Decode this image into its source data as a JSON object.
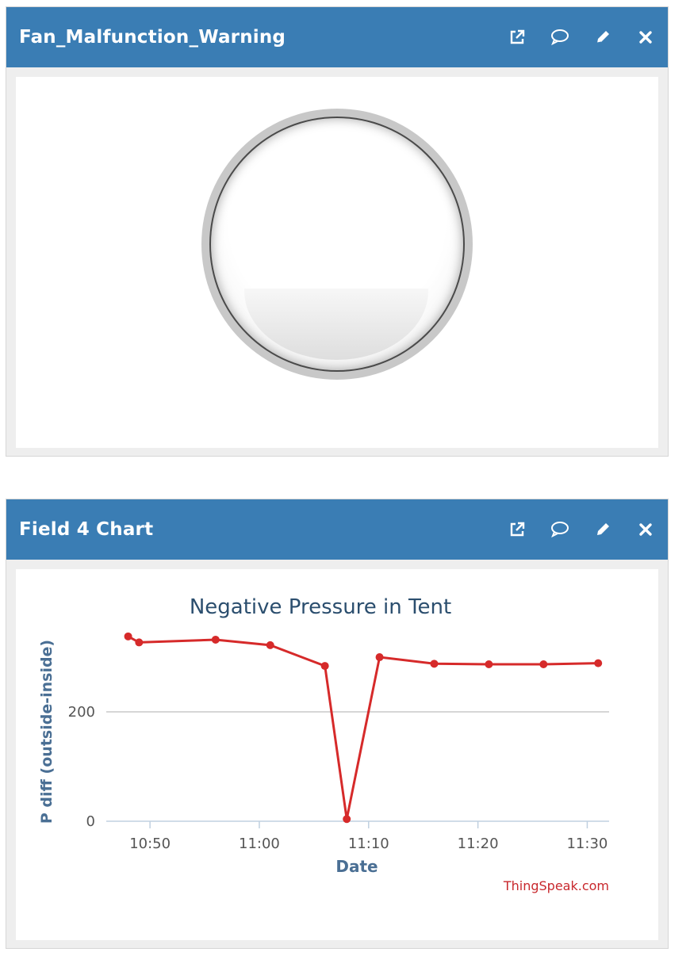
{
  "widgets": [
    {
      "title": "Fan_Malfunction_Warning",
      "icons": [
        "external-link-icon",
        "comment-icon",
        "pencil-icon",
        "close-icon"
      ],
      "lamp_state": "off"
    },
    {
      "title": "Field 4 Chart",
      "icons": [
        "external-link-icon",
        "comment-icon",
        "pencil-icon",
        "close-icon"
      ]
    }
  ],
  "colors": {
    "header": "#3a7db4",
    "series": "#d62a2a",
    "title_text": "#2b4e6e",
    "axis_label": "#4a6f94",
    "credit": "#c8282d"
  },
  "chart_data": {
    "type": "line",
    "title": "Negative Pressure in Tent",
    "xlabel": "Date",
    "ylabel": "P diff (outside-inside)",
    "credit": "ThingSpeak.com",
    "x_ticks": [
      "10:50",
      "11:00",
      "11:10",
      "11:20",
      "11:30"
    ],
    "y_ticks": [
      "0",
      "200"
    ],
    "xlim_minutes": [
      "10:46",
      "11:32"
    ],
    "ylim": [
      0,
      345
    ],
    "series": [
      {
        "x": [
          "10:48",
          "10:49",
          "10:56",
          "11:01",
          "11:06",
          "11:08",
          "11:11",
          "11:16",
          "11:21",
          "11:26",
          "11:31"
        ],
        "y": [
          338,
          327,
          332,
          322,
          284,
          4,
          300,
          288,
          287,
          287,
          289
        ]
      }
    ],
    "grid": true,
    "legend": "none"
  }
}
